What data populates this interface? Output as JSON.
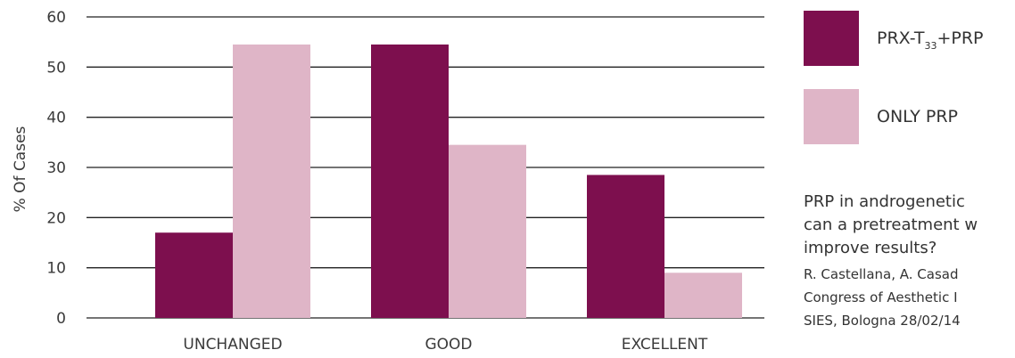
{
  "colors": {
    "series1": "#7d0f4e",
    "series2": "#dfb5c7",
    "grid": "#222222",
    "text": "#3a3a3a"
  },
  "legend": {
    "items": [
      {
        "label_main": "PRX-T",
        "label_sub": "33",
        "label_tail": "+PRP",
        "color": "#7d0f4e"
      },
      {
        "label_main": "ONLY PRP",
        "label_sub": "",
        "label_tail": "",
        "color": "#dfb5c7"
      }
    ]
  },
  "reference": {
    "lines": [
      "PRP in androgenetic",
      "can a pretreatment w",
      "improve results?",
      "R. Castellana, A. Casad",
      "Congress of Aesthetic I",
      "SIES, Bologna 28/02/14"
    ]
  },
  "chart_data": {
    "type": "bar",
    "title": "",
    "xlabel": "",
    "ylabel": "% Of Cases",
    "categories": [
      "UNCHANGED",
      "GOOD",
      "EXCELLENT"
    ],
    "series": [
      {
        "name": "PRX-T33+PRP",
        "values": [
          17,
          54.5,
          28.5
        ]
      },
      {
        "name": "ONLY PRP",
        "values": [
          54.5,
          34.5,
          9
        ]
      }
    ],
    "ylim": [
      0,
      60
    ],
    "yticks": [
      "0",
      "10",
      "20",
      "30",
      "40",
      "50",
      "60"
    ],
    "grid": true,
    "legend_position": "right"
  }
}
